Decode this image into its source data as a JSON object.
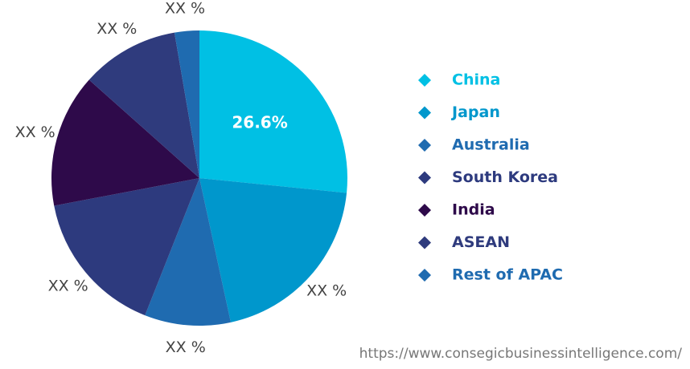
{
  "chart_data": {
    "type": "pie",
    "categories": [
      "China",
      "Japan",
      "Australia",
      "South Korea",
      "India",
      "ASEAN",
      "Rest of APAC"
    ],
    "values": [
      26.6,
      20,
      9.4,
      16,
      14.6,
      10.7,
      2.7
    ],
    "value_labels": [
      "26.6%",
      "XX %",
      "XX %",
      "XX %",
      "XX %",
      "XX %",
      "XX %"
    ],
    "colors": [
      "#00c0e4",
      "#0097cc",
      "#1f6bb0",
      "#2d3a7e",
      "#2e0a4a",
      "#2f3b7d",
      "#1f6bb0"
    ],
    "source": "https://www.consegicbusinessintelligence.com/"
  }
}
